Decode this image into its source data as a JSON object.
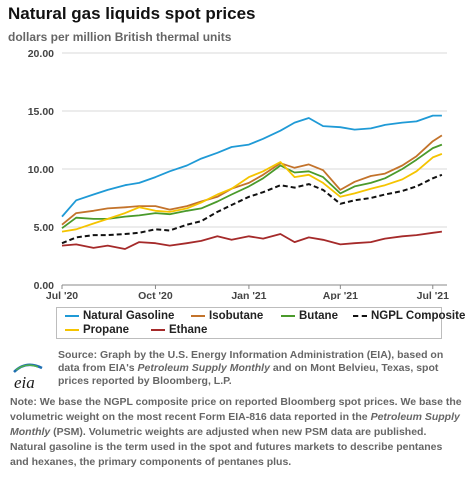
{
  "title": "Natural gas liquids spot prices",
  "subtitle": "dollars per million British thermal units",
  "source": {
    "pre": "Source: Graph by the U.S. Energy Information Administration (EIA), based on data from EIA's ",
    "italic1": "Petroleum Supply Monthly",
    "mid": " and on Mont Belvieu, Texas, spot prices reported by Bloomberg, L.P."
  },
  "note": {
    "pre": "Note: We base the NGPL composite price on reported Bloomberg spot prices. We base the volumetric weight on the most recent Form EIA-816 data reported in the ",
    "italic1": "Petroleum Supply Monthly",
    "post": " (PSM). Volumetric weights are adjusted when new PSM data are published. Natural gasoline is the term used in the spot and futures markets to describe pentanes and hexanes, the primary components of pentanes plus."
  },
  "logo_text": "eia",
  "chart_data": {
    "type": "line",
    "title": "Natural gas liquids spot prices",
    "ylabel": "dollars per million British thermal units",
    "ylim": [
      0,
      20
    ],
    "yticks": [
      "0.00",
      "5.00",
      "10.00",
      "15.00",
      "20.00"
    ],
    "xlim": [
      "2020-07-01",
      "2021-07-15"
    ],
    "xticks": [
      {
        "date": "2020-07-01",
        "label": "Jul '20"
      },
      {
        "date": "2020-10-01",
        "label": "Oct '20"
      },
      {
        "date": "2021-01-01",
        "label": "Jan '21"
      },
      {
        "date": "2021-04-01",
        "label": "Apr '21"
      },
      {
        "date": "2021-07-01",
        "label": "Jul '21"
      }
    ],
    "grid": "horizontal",
    "legend_position": "bottom",
    "x": [
      "2020-07-01",
      "2020-07-15",
      "2020-08-01",
      "2020-08-15",
      "2020-09-01",
      "2020-09-15",
      "2020-10-01",
      "2020-10-15",
      "2020-11-01",
      "2020-11-15",
      "2020-12-01",
      "2020-12-15",
      "2021-01-01",
      "2021-01-15",
      "2021-02-01",
      "2021-02-15",
      "2021-03-01",
      "2021-03-15",
      "2021-04-01",
      "2021-04-15",
      "2021-05-01",
      "2021-05-15",
      "2021-06-01",
      "2021-06-15",
      "2021-07-01",
      "2021-07-10"
    ],
    "series": [
      {
        "name": "Natural Gasoline",
        "color": "#1f9ad6",
        "dash": "solid",
        "values": [
          5.9,
          7.3,
          7.8,
          8.2,
          8.6,
          8.8,
          9.3,
          9.8,
          10.3,
          10.9,
          11.4,
          11.9,
          12.1,
          12.6,
          13.3,
          14.0,
          14.4,
          13.7,
          13.6,
          13.4,
          13.5,
          13.8,
          14.0,
          14.1,
          14.6,
          14.6
        ]
      },
      {
        "name": "Isobutane",
        "color": "#c3732b",
        "dash": "solid",
        "values": [
          5.2,
          6.2,
          6.4,
          6.6,
          6.7,
          6.8,
          6.8,
          6.5,
          6.8,
          7.2,
          7.6,
          8.3,
          8.8,
          9.5,
          10.5,
          10.1,
          10.4,
          9.9,
          8.2,
          8.9,
          9.4,
          9.6,
          10.3,
          11.1,
          12.4,
          12.9
        ]
      },
      {
        "name": "Butane",
        "color": "#4a9a2b",
        "dash": "solid",
        "values": [
          4.9,
          5.8,
          5.7,
          5.7,
          5.9,
          6.0,
          6.2,
          6.1,
          6.4,
          6.6,
          7.2,
          7.8,
          8.5,
          9.2,
          10.3,
          9.7,
          9.8,
          9.3,
          7.9,
          8.5,
          8.8,
          9.2,
          10.0,
          10.8,
          11.8,
          12.1
        ]
      },
      {
        "name": "NGPL Composite",
        "color": "#111111",
        "dash": "dashed",
        "values": [
          3.6,
          4.1,
          4.3,
          4.3,
          4.4,
          4.5,
          4.8,
          4.7,
          5.2,
          5.5,
          6.3,
          6.9,
          7.6,
          8.0,
          8.6,
          8.4,
          8.7,
          8.2,
          7.0,
          7.3,
          7.5,
          7.8,
          8.1,
          8.5,
          9.2,
          9.5
        ]
      },
      {
        "name": "Propane",
        "color": "#f5c400",
        "dash": "solid",
        "values": [
          4.6,
          4.8,
          5.3,
          5.7,
          6.2,
          6.7,
          6.4,
          6.3,
          6.6,
          7.1,
          7.8,
          8.3,
          9.3,
          9.8,
          10.6,
          9.3,
          9.5,
          8.8,
          7.6,
          7.9,
          8.3,
          8.6,
          9.1,
          9.8,
          11.0,
          11.3
        ]
      },
      {
        "name": "Ethane",
        "color": "#a52a2a",
        "dash": "solid",
        "values": [
          3.4,
          3.5,
          3.2,
          3.4,
          3.1,
          3.7,
          3.6,
          3.4,
          3.6,
          3.8,
          4.2,
          3.9,
          4.2,
          4.0,
          4.4,
          3.7,
          4.1,
          3.9,
          3.5,
          3.6,
          3.7,
          4.0,
          4.2,
          4.3,
          4.5,
          4.6
        ]
      }
    ]
  }
}
